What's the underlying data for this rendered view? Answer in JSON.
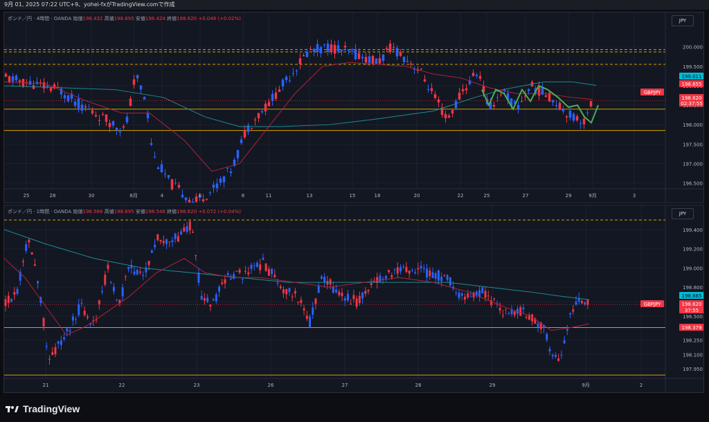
{
  "header": {
    "text": "9月 01, 2025 07:22 UTC+9、yohei-fxがTradingView.comで作成"
  },
  "footer": {
    "brand": "TradingView"
  },
  "colors": {
    "up": "#f23645",
    "down": "#2962ff",
    "ma_red": "#b2233a",
    "ma_teal": "#1e8c95",
    "hline": "#d8a200",
    "green_path": "#4caf50",
    "label_teal": "#00bcd4",
    "label_red": "#f23645"
  },
  "chart_data": [
    {
      "type": "candlestick",
      "title": "ポンド／円 · 4時間 · OANDA",
      "ohlc_text": {
        "open_label": "始値",
        "open": "198.432",
        "high_label": "高値",
        "high": "198.695",
        "low_label": "安値",
        "low": "198.424",
        "close_label": "終値",
        "close": "198.620",
        "change": "+0.048 (+0.02%)"
      },
      "currency": "JPY",
      "ylim": [
        196.35,
        200.35
      ],
      "y_ticks": [
        "200.000",
        "199.500",
        "199.000",
        "198.500",
        "198.000",
        "197.500",
        "197.000",
        "196.500"
      ],
      "x_ticks": [
        "25",
        "28",
        "30",
        "8月",
        "4",
        "6",
        "8",
        "11",
        "13",
        "15",
        "18",
        "20",
        "22",
        "25",
        "27",
        "29",
        "9月",
        "3"
      ],
      "price_labels": [
        {
          "text": "199.011",
          "color": "teal"
        },
        {
          "text": "198.655",
          "color": "red"
        },
        {
          "text": "GBPJPY",
          "color": "red"
        },
        {
          "text": "198.620",
          "color": "red"
        },
        {
          "text": "02:37:55",
          "color": "red"
        }
      ],
      "horizontal_lines": [
        199.93,
        199.87,
        199.55,
        198.4,
        197.85
      ]
    },
    {
      "type": "candlestick",
      "title": "ポンド／円 · 1時間 · OANDA",
      "ohlc_text": {
        "open_label": "始値",
        "open": "198.566",
        "high_label": "高値",
        "high": "198.695",
        "low_label": "安値",
        "low": "198.546",
        "close_label": "終値",
        "close": "198.620",
        "change": "+0.072 (+0.04%)"
      },
      "currency": "JPY",
      "ylim": [
        197.85,
        199.55
      ],
      "y_ticks": [
        "199.400",
        "199.200",
        "199.000",
        "198.800",
        "198.650",
        "198.500",
        "198.250",
        "198.100",
        "197.950"
      ],
      "x_ticks": [
        "21",
        "22",
        "23",
        "26",
        "27",
        "28",
        "29",
        "9月",
        "2"
      ],
      "price_labels": [
        {
          "text": "198.665",
          "color": "teal"
        },
        {
          "text": "GBPJPY",
          "color": "red"
        },
        {
          "text": "198.620",
          "color": "red"
        },
        {
          "text": "37:55",
          "color": "red"
        },
        {
          "text": "198.379",
          "color": "red"
        }
      ],
      "horizontal_lines": [
        199.5,
        198.379,
        197.885
      ]
    }
  ]
}
